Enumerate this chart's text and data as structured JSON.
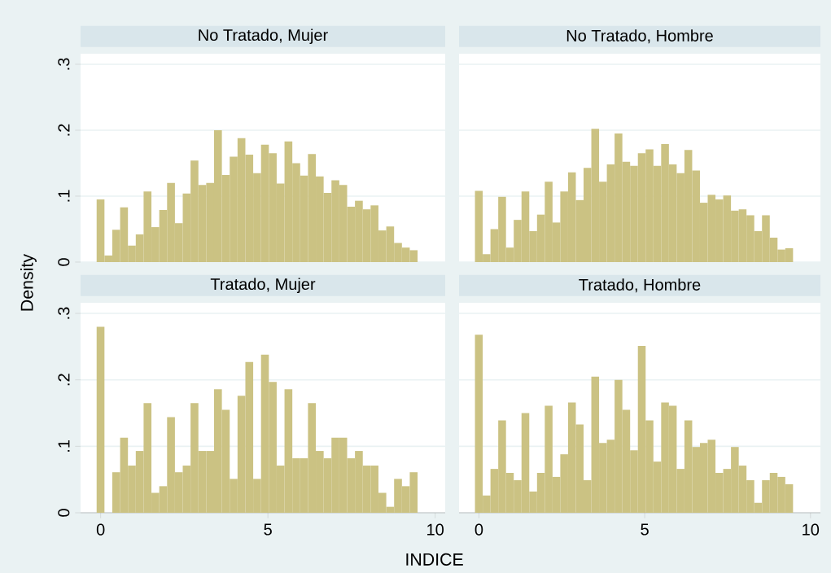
{
  "chart_data": [
    {
      "type": "histogram",
      "title": "No Tratado, Mujer",
      "ylabel": "Density",
      "color": "#cbc283",
      "grid": "y",
      "tick_labels": "y",
      "xlim": [
        -0.6,
        10.3
      ],
      "ylim": [
        0,
        0.316
      ],
      "xticks": [
        0,
        5,
        10
      ],
      "yticks": [
        0,
        {
          "value": 0.1,
          "label": ".1"
        },
        {
          "value": 0.2,
          "label": ".2"
        },
        {
          "value": 0.3,
          "label": ".3"
        }
      ],
      "bins": [
        -0.12,
        0.114,
        0.348,
        0.582,
        0.816,
        1.05,
        1.284,
        1.518,
        1.752,
        1.986,
        2.22,
        2.454,
        2.688,
        2.922,
        3.156,
        3.39,
        3.624,
        3.858,
        4.092,
        4.326,
        4.56,
        4.794,
        5.028,
        5.262,
        5.496,
        5.73,
        5.964,
        6.198,
        6.432,
        6.666,
        6.9,
        7.134,
        7.368,
        7.602,
        7.836,
        8.07,
        8.304,
        8.538,
        8.772,
        9.006,
        9.24,
        9.474
      ],
      "values": [
        0.095,
        0.01,
        0.049,
        0.083,
        0.025,
        0.042,
        0.107,
        0.053,
        0.079,
        0.12,
        0.059,
        0.104,
        0.154,
        0.117,
        0.12,
        0.2,
        0.132,
        0.16,
        0.188,
        0.163,
        0.135,
        0.178,
        0.165,
        0.119,
        0.183,
        0.15,
        0.131,
        0.164,
        0.13,
        0.105,
        0.124,
        0.117,
        0.084,
        0.093,
        0.08,
        0.086,
        0.048,
        0.054,
        0.029,
        0.022,
        0.018
      ]
    },
    {
      "type": "histogram",
      "title": "No Tratado, Hombre",
      "color": "#cbc283",
      "grid": "y",
      "tick_labels": false,
      "xlim": [
        -0.6,
        10.3
      ],
      "ylim": [
        0,
        0.316
      ],
      "xticks": [
        0,
        5,
        10
      ],
      "yticks": [
        0,
        {
          "value": 0.1,
          "label": null
        },
        {
          "value": 0.2,
          "label": null
        },
        {
          "value": 0.3,
          "label": null
        }
      ],
      "bins": [
        -0.12,
        0.114,
        0.348,
        0.582,
        0.816,
        1.05,
        1.284,
        1.518,
        1.752,
        1.986,
        2.22,
        2.454,
        2.688,
        2.922,
        3.156,
        3.39,
        3.624,
        3.858,
        4.092,
        4.326,
        4.56,
        4.794,
        5.028,
        5.262,
        5.496,
        5.73,
        5.964,
        6.198,
        6.432,
        6.666,
        6.9,
        7.134,
        7.368,
        7.602,
        7.836,
        8.07,
        8.304,
        8.538,
        8.772,
        9.006,
        9.24,
        9.474
      ],
      "values": [
        0.108,
        0.012,
        0.05,
        0.099,
        0.022,
        0.064,
        0.107,
        0.047,
        0.072,
        0.122,
        0.06,
        0.107,
        0.136,
        0.094,
        0.143,
        0.202,
        0.122,
        0.148,
        0.195,
        0.152,
        0.146,
        0.165,
        0.171,
        0.146,
        0.179,
        0.148,
        0.135,
        0.17,
        0.139,
        0.09,
        0.102,
        0.095,
        0.101,
        0.078,
        0.08,
        0.071,
        0.047,
        0.071,
        0.037,
        0.019,
        0.021
      ]
    },
    {
      "type": "histogram",
      "title": "Tratado, Mujer",
      "xlabel": "INDICE",
      "color": "#cbc283",
      "grid": "y",
      "xlim": [
        -0.6,
        10.3
      ],
      "ylim": [
        0,
        0.316
      ],
      "xticks": [
        0,
        5,
        10
      ],
      "yticks": [
        0,
        {
          "value": 0.1,
          "label": ".1"
        },
        {
          "value": 0.2,
          "label": ".2"
        },
        {
          "value": 0.3,
          "label": ".3"
        }
      ],
      "bins": [
        -0.12,
        0.114,
        0.348,
        0.582,
        0.816,
        1.05,
        1.284,
        1.518,
        1.752,
        1.986,
        2.22,
        2.454,
        2.688,
        2.922,
        3.156,
        3.39,
        3.624,
        3.858,
        4.092,
        4.326,
        4.56,
        4.794,
        5.028,
        5.262,
        5.496,
        5.73,
        5.964,
        6.198,
        6.432,
        6.666,
        6.9,
        7.134,
        7.368,
        7.602,
        7.836,
        8.07,
        8.304,
        8.538,
        8.772,
        9.006,
        9.24,
        9.474
      ],
      "values": [
        0.28,
        0,
        0.061,
        0.113,
        0.071,
        0.093,
        0.165,
        0.03,
        0.04,
        0.144,
        0.061,
        0.071,
        0.165,
        0.093,
        0.093,
        0.186,
        0.155,
        0.051,
        0.176,
        0.227,
        0.051,
        0.238,
        0.197,
        0.071,
        0.186,
        0.082,
        0.082,
        0.165,
        0.093,
        0.082,
        0.113,
        0.113,
        0.082,
        0.093,
        0.071,
        0.071,
        0.03,
        0.009,
        0.051,
        0.04,
        0.061
      ]
    },
    {
      "type": "histogram",
      "title": "Tratado, Hombre",
      "color": "#cbc283",
      "grid": "y",
      "tick_labels": "x",
      "xlim": [
        -0.6,
        10.3
      ],
      "ylim": [
        0,
        0.316
      ],
      "xticks": [
        0,
        5,
        10
      ],
      "yticks": [
        0,
        {
          "value": 0.1,
          "label": null
        },
        {
          "value": 0.2,
          "label": null
        },
        {
          "value": 0.3,
          "label": null
        }
      ],
      "bins": [
        -0.12,
        0.114,
        0.348,
        0.582,
        0.816,
        1.05,
        1.284,
        1.518,
        1.752,
        1.986,
        2.22,
        2.454,
        2.688,
        2.922,
        3.156,
        3.39,
        3.624,
        3.858,
        4.092,
        4.326,
        4.56,
        4.794,
        5.028,
        5.262,
        5.496,
        5.73,
        5.964,
        6.198,
        6.432,
        6.666,
        6.9,
        7.134,
        7.368,
        7.602,
        7.836,
        8.07,
        8.304,
        8.538,
        8.772,
        9.006,
        9.24,
        9.474
      ],
      "values": [
        0.268,
        0.026,
        0.066,
        0.139,
        0.06,
        0.049,
        0.15,
        0.032,
        0.06,
        0.161,
        0.054,
        0.088,
        0.166,
        0.133,
        0.049,
        0.205,
        0.105,
        0.11,
        0.2,
        0.155,
        0.094,
        0.251,
        0.139,
        0.077,
        0.166,
        0.161,
        0.066,
        0.139,
        0.099,
        0.105,
        0.11,
        0.06,
        0.066,
        0.099,
        0.071,
        0.049,
        0.015,
        0.049,
        0.06,
        0.054,
        0.043
      ]
    }
  ]
}
